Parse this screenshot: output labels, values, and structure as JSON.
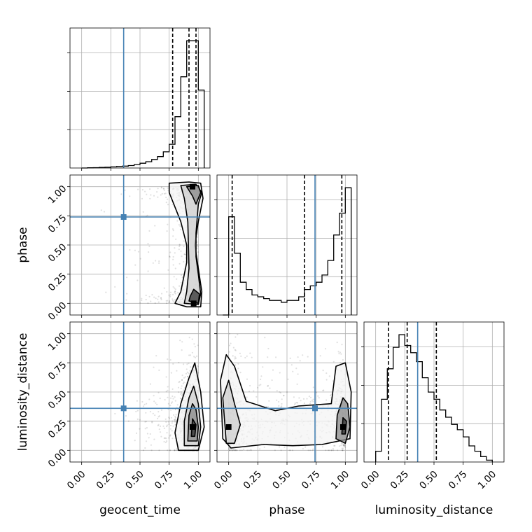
{
  "chart_data": {
    "type": "corner",
    "parameters": [
      "geocent_time",
      "phase",
      "luminosity_distance"
    ],
    "axis_labels": {
      "bottom": [
        "geocent_time",
        "phase",
        "luminosity_distance"
      ],
      "left": [
        "phase",
        "luminosity_distance"
      ]
    },
    "ranges": {
      "geocent_time": [
        -0.1,
        1.1
      ],
      "phase": [
        -0.1,
        1.1
      ],
      "luminosity_distance": [
        -0.1,
        1.1
      ]
    },
    "tick_values": [
      0.0,
      0.25,
      0.5,
      0.75,
      1.0
    ],
    "tick_labels": [
      "0.00",
      "0.25",
      "0.50",
      "0.75",
      "1.00"
    ],
    "grid": true,
    "truth_color": "#4682b4",
    "truths": {
      "geocent_time": 0.36,
      "phase": 0.74,
      "luminosity_distance": 0.36
    },
    "quantiles": {
      "geocent_time": [
        0.78,
        0.92,
        0.98
      ],
      "phase": [
        0.03,
        0.65,
        0.97
      ],
      "luminosity_distance": [
        0.11,
        0.27,
        0.52
      ]
    },
    "histograms": {
      "geocent_time": {
        "bin_edges": [
          0.0,
          0.05,
          0.1,
          0.15,
          0.2,
          0.25,
          0.3,
          0.35,
          0.4,
          0.45,
          0.5,
          0.55,
          0.6,
          0.65,
          0.7,
          0.75,
          0.8,
          0.85,
          0.9,
          0.95,
          1.0,
          1.05
        ],
        "counts": [
          0,
          0.1,
          0.2,
          0.3,
          0.4,
          0.6,
          0.8,
          1.0,
          1.3,
          1.8,
          2.5,
          3.3,
          4.5,
          6.0,
          8.5,
          12.5,
          27,
          48,
          67,
          67,
          41
        ]
      },
      "phase": {
        "bin_edges": [
          -0.05,
          0.0,
          0.05,
          0.1,
          0.15,
          0.2,
          0.25,
          0.3,
          0.35,
          0.4,
          0.45,
          0.5,
          0.55,
          0.6,
          0.65,
          0.7,
          0.75,
          0.8,
          0.85,
          0.9,
          0.95,
          1.0,
          1.05
        ],
        "counts": [
          0,
          27,
          17,
          9,
          7,
          5.5,
          5,
          4.5,
          4,
          4,
          3.5,
          4,
          4,
          5,
          7,
          8,
          9,
          11,
          15,
          22,
          28,
          35,
          0
        ]
      },
      "luminosity_distance": {
        "bin_edges": [
          0.0,
          0.05,
          0.1,
          0.15,
          0.2,
          0.25,
          0.3,
          0.35,
          0.4,
          0.45,
          0.5,
          0.55,
          0.6,
          0.65,
          0.7,
          0.75,
          0.8,
          0.85,
          0.9,
          0.95,
          1.0
        ],
        "counts": [
          6,
          35,
          52,
          64,
          71,
          65,
          61,
          56,
          47,
          39,
          35,
          29,
          25,
          21,
          18,
          14,
          9,
          6,
          3,
          1
        ]
      }
    },
    "contour_levels": 4,
    "modes": {
      "phase_vs_geocent_time": [
        [
          0.95,
          1.0
        ],
        [
          0.96,
          0.0
        ]
      ],
      "luminosity_distance_vs_geocent_time": [
        [
          0.95,
          0.2
        ]
      ],
      "luminosity_distance_vs_phase": [
        [
          0.0,
          0.2
        ],
        [
          0.98,
          0.2
        ]
      ]
    }
  }
}
